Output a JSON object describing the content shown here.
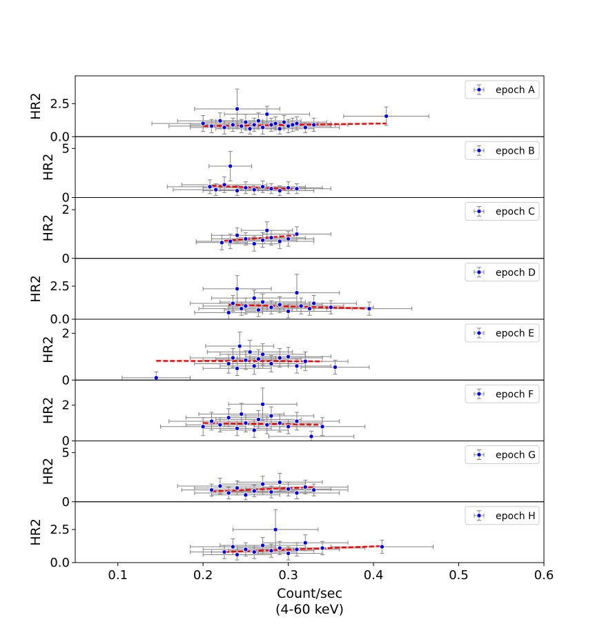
{
  "chart_data": {
    "type": "scatter",
    "xlabel_lines": [
      "Count/sec",
      "(4-60 keV)"
    ],
    "xlim": [
      0.05,
      0.6
    ],
    "xticks": [
      0.1,
      0.2,
      0.3,
      0.4,
      0.5,
      0.6
    ],
    "xtick_labels": [
      "0.1",
      "0.2",
      "0.3",
      "0.4",
      "0.5",
      "0.6"
    ],
    "colors": {
      "marker": "#0000ff",
      "marker_edge": "#ffffff",
      "errorbar": "#808080",
      "fit": "#ff0000"
    },
    "panels": [
      {
        "legend": "epoch A",
        "ylabel": "HR2",
        "ylim": [
          0,
          4.6
        ],
        "yticks": [
          0,
          2.5
        ],
        "ytick_labels": [
          "0.0",
          "2.5"
        ],
        "fit": {
          "x": [
            0.2,
            0.415
          ],
          "y": [
            0.8,
            1.0
          ]
        },
        "points": [
          {
            "x": 0.2,
            "y": 1.0,
            "xe": 0.06,
            "ye": 0.6
          },
          {
            "x": 0.21,
            "y": 0.8,
            "xe": 0.05,
            "ye": 0.5
          },
          {
            "x": 0.22,
            "y": 1.2,
            "xe": 0.05,
            "ye": 0.6
          },
          {
            "x": 0.225,
            "y": 0.7,
            "xe": 0.04,
            "ye": 0.5
          },
          {
            "x": 0.235,
            "y": 0.9,
            "xe": 0.05,
            "ye": 0.5
          },
          {
            "x": 0.24,
            "y": 2.1,
            "xe": 0.05,
            "ye": 1.5
          },
          {
            "x": 0.245,
            "y": 0.8,
            "xe": 0.04,
            "ye": 0.5
          },
          {
            "x": 0.25,
            "y": 1.1,
            "xe": 0.05,
            "ye": 0.6
          },
          {
            "x": 0.255,
            "y": 0.6,
            "xe": 0.04,
            "ye": 0.4
          },
          {
            "x": 0.26,
            "y": 0.9,
            "xe": 0.05,
            "ye": 0.5
          },
          {
            "x": 0.265,
            "y": 1.2,
            "xe": 0.05,
            "ye": 0.6
          },
          {
            "x": 0.27,
            "y": 0.7,
            "xe": 0.04,
            "ye": 0.5
          },
          {
            "x": 0.275,
            "y": 1.7,
            "xe": 0.05,
            "ye": 0.6
          },
          {
            "x": 0.28,
            "y": 0.9,
            "xe": 0.05,
            "ye": 0.5
          },
          {
            "x": 0.285,
            "y": 1.0,
            "xe": 0.05,
            "ye": 0.5
          },
          {
            "x": 0.29,
            "y": 0.6,
            "xe": 0.04,
            "ye": 0.4
          },
          {
            "x": 0.295,
            "y": 1.1,
            "xe": 0.05,
            "ye": 0.5
          },
          {
            "x": 0.3,
            "y": 0.8,
            "xe": 0.05,
            "ye": 0.5
          },
          {
            "x": 0.305,
            "y": 0.9,
            "xe": 0.05,
            "ye": 0.5
          },
          {
            "x": 0.31,
            "y": 1.0,
            "xe": 0.04,
            "ye": 0.5
          },
          {
            "x": 0.32,
            "y": 0.7,
            "xe": 0.04,
            "ye": 0.4
          },
          {
            "x": 0.33,
            "y": 0.9,
            "xe": 0.04,
            "ye": 0.5
          },
          {
            "x": 0.415,
            "y": 1.55,
            "xe": 0.05,
            "ye": 0.7
          }
        ]
      },
      {
        "legend": "epoch B",
        "ylabel": "HR2",
        "ylim": [
          0,
          6.2
        ],
        "yticks": [
          0,
          5
        ],
        "ytick_labels": [
          "0",
          "5"
        ],
        "fit": {
          "x": [
            0.21,
            0.31
          ],
          "y": [
            1.2,
            0.85
          ]
        },
        "points": [
          {
            "x": 0.208,
            "y": 1.1,
            "xe": 0.05,
            "ye": 0.7
          },
          {
            "x": 0.215,
            "y": 0.8,
            "xe": 0.05,
            "ye": 0.6
          },
          {
            "x": 0.225,
            "y": 1.3,
            "xe": 0.05,
            "ye": 0.8
          },
          {
            "x": 0.232,
            "y": 3.2,
            "xe": 0.025,
            "ye": 1.5
          },
          {
            "x": 0.24,
            "y": 0.7,
            "xe": 0.04,
            "ye": 0.5
          },
          {
            "x": 0.25,
            "y": 1.0,
            "xe": 0.05,
            "ye": 0.6
          },
          {
            "x": 0.26,
            "y": 0.8,
            "xe": 0.04,
            "ye": 0.5
          },
          {
            "x": 0.27,
            "y": 1.1,
            "xe": 0.05,
            "ye": 0.6
          },
          {
            "x": 0.28,
            "y": 0.9,
            "xe": 0.04,
            "ye": 0.5
          },
          {
            "x": 0.29,
            "y": 0.7,
            "xe": 0.04,
            "ye": 0.5
          },
          {
            "x": 0.3,
            "y": 1.0,
            "xe": 0.04,
            "ye": 0.6
          },
          {
            "x": 0.31,
            "y": 0.9,
            "xe": 0.04,
            "ye": 0.5
          }
        ]
      },
      {
        "legend": "epoch C",
        "ylabel": "HR2",
        "ylim": [
          0,
          2.5
        ],
        "yticks": [
          0,
          2
        ],
        "ytick_labels": [
          "0",
          "2"
        ],
        "fit": {
          "x": [
            0.225,
            0.31
          ],
          "y": [
            0.72,
            0.95
          ]
        },
        "points": [
          {
            "x": 0.222,
            "y": 0.65,
            "xe": 0.03,
            "ye": 0.3
          },
          {
            "x": 0.232,
            "y": 0.7,
            "xe": 0.04,
            "ye": 0.3
          },
          {
            "x": 0.24,
            "y": 0.95,
            "xe": 0.03,
            "ye": 0.3
          },
          {
            "x": 0.25,
            "y": 0.8,
            "xe": 0.04,
            "ye": 0.25
          },
          {
            "x": 0.26,
            "y": 0.6,
            "xe": 0.03,
            "ye": 0.3
          },
          {
            "x": 0.27,
            "y": 0.75,
            "xe": 0.04,
            "ye": 0.3
          },
          {
            "x": 0.275,
            "y": 1.15,
            "xe": 0.03,
            "ye": 0.35
          },
          {
            "x": 0.28,
            "y": 0.85,
            "xe": 0.04,
            "ye": 0.3
          },
          {
            "x": 0.29,
            "y": 0.7,
            "xe": 0.04,
            "ye": 0.3
          },
          {
            "x": 0.3,
            "y": 0.8,
            "xe": 0.03,
            "ye": 0.3
          },
          {
            "x": 0.31,
            "y": 1.0,
            "xe": 0.04,
            "ye": 0.3
          }
        ]
      },
      {
        "legend": "epoch D",
        "ylabel": "HR2",
        "ylim": [
          0,
          4.6
        ],
        "yticks": [
          0,
          2.5
        ],
        "ytick_labels": [
          "0.0",
          "2.5"
        ],
        "fit": {
          "x": [
            0.23,
            0.395
          ],
          "y": [
            1.1,
            0.8
          ]
        },
        "points": [
          {
            "x": 0.23,
            "y": 0.5,
            "xe": 0.04,
            "ye": 0.5
          },
          {
            "x": 0.235,
            "y": 1.2,
            "xe": 0.05,
            "ye": 0.6
          },
          {
            "x": 0.24,
            "y": 2.3,
            "xe": 0.04,
            "ye": 1.0
          },
          {
            "x": 0.245,
            "y": 0.8,
            "xe": 0.05,
            "ye": 0.5
          },
          {
            "x": 0.25,
            "y": 1.0,
            "xe": 0.05,
            "ye": 0.6
          },
          {
            "x": 0.26,
            "y": 1.6,
            "xe": 0.05,
            "ye": 0.6
          },
          {
            "x": 0.265,
            "y": 0.7,
            "xe": 0.04,
            "ye": 0.5
          },
          {
            "x": 0.27,
            "y": 1.3,
            "xe": 0.05,
            "ye": 0.6
          },
          {
            "x": 0.28,
            "y": 0.9,
            "xe": 0.05,
            "ye": 0.5
          },
          {
            "x": 0.29,
            "y": 1.1,
            "xe": 0.05,
            "ye": 0.6
          },
          {
            "x": 0.3,
            "y": 0.6,
            "xe": 0.05,
            "ye": 0.5
          },
          {
            "x": 0.31,
            "y": 2.0,
            "xe": 0.05,
            "ye": 1.4
          },
          {
            "x": 0.315,
            "y": 1.0,
            "xe": 0.05,
            "ye": 0.6
          },
          {
            "x": 0.325,
            "y": 0.8,
            "xe": 0.05,
            "ye": 0.5
          },
          {
            "x": 0.33,
            "y": 1.2,
            "xe": 0.05,
            "ye": 0.6
          },
          {
            "x": 0.35,
            "y": 0.9,
            "xe": 0.05,
            "ye": 0.5
          },
          {
            "x": 0.395,
            "y": 0.8,
            "xe": 0.05,
            "ye": 0.5
          }
        ]
      },
      {
        "legend": "epoch E",
        "ylabel": "HR2",
        "ylim": [
          0,
          2.6
        ],
        "yticks": [
          0,
          2
        ],
        "ytick_labels": [
          "0",
          "2"
        ],
        "fit": {
          "x": [
            0.145,
            0.34
          ],
          "y": [
            0.82,
            0.8
          ]
        },
        "points": [
          {
            "x": 0.145,
            "y": 0.1,
            "xe": 0.04,
            "ye": 0.25
          },
          {
            "x": 0.23,
            "y": 0.7,
            "xe": 0.04,
            "ye": 0.4
          },
          {
            "x": 0.235,
            "y": 0.95,
            "xe": 0.05,
            "ye": 0.4
          },
          {
            "x": 0.24,
            "y": 0.5,
            "xe": 0.04,
            "ye": 0.3
          },
          {
            "x": 0.243,
            "y": 1.45,
            "xe": 0.04,
            "ye": 0.6
          },
          {
            "x": 0.25,
            "y": 0.85,
            "xe": 0.05,
            "ye": 0.4
          },
          {
            "x": 0.255,
            "y": 1.2,
            "xe": 0.05,
            "ye": 0.5
          },
          {
            "x": 0.26,
            "y": 0.6,
            "xe": 0.04,
            "ye": 0.35
          },
          {
            "x": 0.265,
            "y": 0.9,
            "xe": 0.05,
            "ye": 0.4
          },
          {
            "x": 0.27,
            "y": 1.1,
            "xe": 0.05,
            "ye": 0.45
          },
          {
            "x": 0.28,
            "y": 0.7,
            "xe": 0.04,
            "ye": 0.35
          },
          {
            "x": 0.29,
            "y": 0.95,
            "xe": 0.05,
            "ye": 0.4
          },
          {
            "x": 0.3,
            "y": 1.0,
            "xe": 0.05,
            "ye": 0.4
          },
          {
            "x": 0.31,
            "y": 0.6,
            "xe": 0.04,
            "ye": 0.3
          },
          {
            "x": 0.32,
            "y": 0.8,
            "xe": 0.05,
            "ye": 0.4
          },
          {
            "x": 0.355,
            "y": 0.55,
            "xe": 0.04,
            "ye": 0.3
          }
        ]
      },
      {
        "legend": "epoch F",
        "ylabel": "HR2",
        "ylim": [
          0,
          3.4
        ],
        "yticks": [
          0,
          2
        ],
        "ytick_labels": [
          "0",
          "2"
        ],
        "fit": {
          "x": [
            0.2,
            0.34
          ],
          "y": [
            1.0,
            0.9
          ]
        },
        "points": [
          {
            "x": 0.2,
            "y": 0.8,
            "xe": 0.05,
            "ye": 0.5
          },
          {
            "x": 0.21,
            "y": 1.1,
            "xe": 0.05,
            "ye": 0.5
          },
          {
            "x": 0.22,
            "y": 0.9,
            "xe": 0.04,
            "ye": 0.4
          },
          {
            "x": 0.23,
            "y": 1.3,
            "xe": 0.05,
            "ye": 0.5
          },
          {
            "x": 0.24,
            "y": 0.7,
            "xe": 0.04,
            "ye": 0.4
          },
          {
            "x": 0.245,
            "y": 1.5,
            "xe": 0.05,
            "ye": 0.6
          },
          {
            "x": 0.25,
            "y": 1.0,
            "xe": 0.05,
            "ye": 0.5
          },
          {
            "x": 0.26,
            "y": 0.6,
            "xe": 0.04,
            "ye": 0.4
          },
          {
            "x": 0.265,
            "y": 1.2,
            "xe": 0.05,
            "ye": 0.5
          },
          {
            "x": 0.27,
            "y": 2.05,
            "xe": 0.04,
            "ye": 0.9
          },
          {
            "x": 0.275,
            "y": 0.9,
            "xe": 0.05,
            "ye": 0.5
          },
          {
            "x": 0.28,
            "y": 1.4,
            "xe": 0.05,
            "ye": 0.5
          },
          {
            "x": 0.29,
            "y": 1.0,
            "xe": 0.05,
            "ye": 0.5
          },
          {
            "x": 0.3,
            "y": 0.8,
            "xe": 0.04,
            "ye": 0.4
          },
          {
            "x": 0.31,
            "y": 1.1,
            "xe": 0.05,
            "ye": 0.5
          },
          {
            "x": 0.327,
            "y": 0.25,
            "xe": 0.05,
            "ye": 0.3
          },
          {
            "x": 0.34,
            "y": 0.8,
            "xe": 0.05,
            "ye": 0.5
          }
        ]
      },
      {
        "legend": "epoch G",
        "ylabel": "HR2",
        "ylim": [
          0,
          6.2
        ],
        "yticks": [
          0,
          5
        ],
        "ytick_labels": [
          "0",
          "5"
        ],
        "fit": {
          "x": [
            0.21,
            0.33
          ],
          "y": [
            1.05,
            1.5
          ]
        },
        "points": [
          {
            "x": 0.21,
            "y": 1.2,
            "xe": 0.035,
            "ye": 0.6
          },
          {
            "x": 0.22,
            "y": 1.6,
            "xe": 0.05,
            "ye": 0.8
          },
          {
            "x": 0.23,
            "y": 0.9,
            "xe": 0.04,
            "ye": 0.6
          },
          {
            "x": 0.24,
            "y": 1.4,
            "xe": 0.05,
            "ye": 0.7
          },
          {
            "x": 0.25,
            "y": 0.7,
            "xe": 0.04,
            "ye": 0.5
          },
          {
            "x": 0.26,
            "y": 1.1,
            "xe": 0.05,
            "ye": 0.6
          },
          {
            "x": 0.27,
            "y": 1.8,
            "xe": 0.05,
            "ye": 0.8
          },
          {
            "x": 0.28,
            "y": 1.0,
            "xe": 0.05,
            "ye": 0.6
          },
          {
            "x": 0.29,
            "y": 2.0,
            "xe": 0.05,
            "ye": 0.9
          },
          {
            "x": 0.3,
            "y": 1.3,
            "xe": 0.05,
            "ye": 0.7
          },
          {
            "x": 0.31,
            "y": 0.9,
            "xe": 0.05,
            "ye": 0.6
          },
          {
            "x": 0.32,
            "y": 1.5,
            "xe": 0.05,
            "ye": 0.7
          },
          {
            "x": 0.33,
            "y": 1.2,
            "xe": 0.04,
            "ye": 0.6
          }
        ]
      },
      {
        "legend": "epoch H",
        "ylabel": "HR2",
        "ylim": [
          0,
          4.6
        ],
        "yticks": [
          0,
          2.5
        ],
        "ytick_labels": [
          "0.0",
          "2.5"
        ],
        "fit": {
          "x": [
            0.225,
            0.41
          ],
          "y": [
            0.8,
            1.25
          ]
        },
        "points": [
          {
            "x": 0.225,
            "y": 0.8,
            "xe": 0.04,
            "ye": 0.5
          },
          {
            "x": 0.235,
            "y": 1.2,
            "xe": 0.05,
            "ye": 0.6
          },
          {
            "x": 0.24,
            "y": 0.6,
            "xe": 0.04,
            "ye": 0.4
          },
          {
            "x": 0.25,
            "y": 1.0,
            "xe": 0.05,
            "ye": 0.5
          },
          {
            "x": 0.26,
            "y": 0.8,
            "xe": 0.05,
            "ye": 0.5
          },
          {
            "x": 0.27,
            "y": 1.3,
            "xe": 0.05,
            "ye": 0.6
          },
          {
            "x": 0.28,
            "y": 0.9,
            "xe": 0.05,
            "ye": 0.5
          },
          {
            "x": 0.285,
            "y": 2.5,
            "xe": 0.05,
            "ye": 1.5
          },
          {
            "x": 0.29,
            "y": 1.1,
            "xe": 0.05,
            "ye": 0.5
          },
          {
            "x": 0.3,
            "y": 0.7,
            "xe": 0.04,
            "ye": 0.5
          },
          {
            "x": 0.31,
            "y": 1.0,
            "xe": 0.05,
            "ye": 0.5
          },
          {
            "x": 0.32,
            "y": 1.5,
            "xe": 0.05,
            "ye": 0.6
          },
          {
            "x": 0.34,
            "y": 1.1,
            "xe": 0.05,
            "ye": 0.5
          },
          {
            "x": 0.41,
            "y": 1.2,
            "xe": 0.06,
            "ye": 0.5
          }
        ]
      }
    ]
  }
}
